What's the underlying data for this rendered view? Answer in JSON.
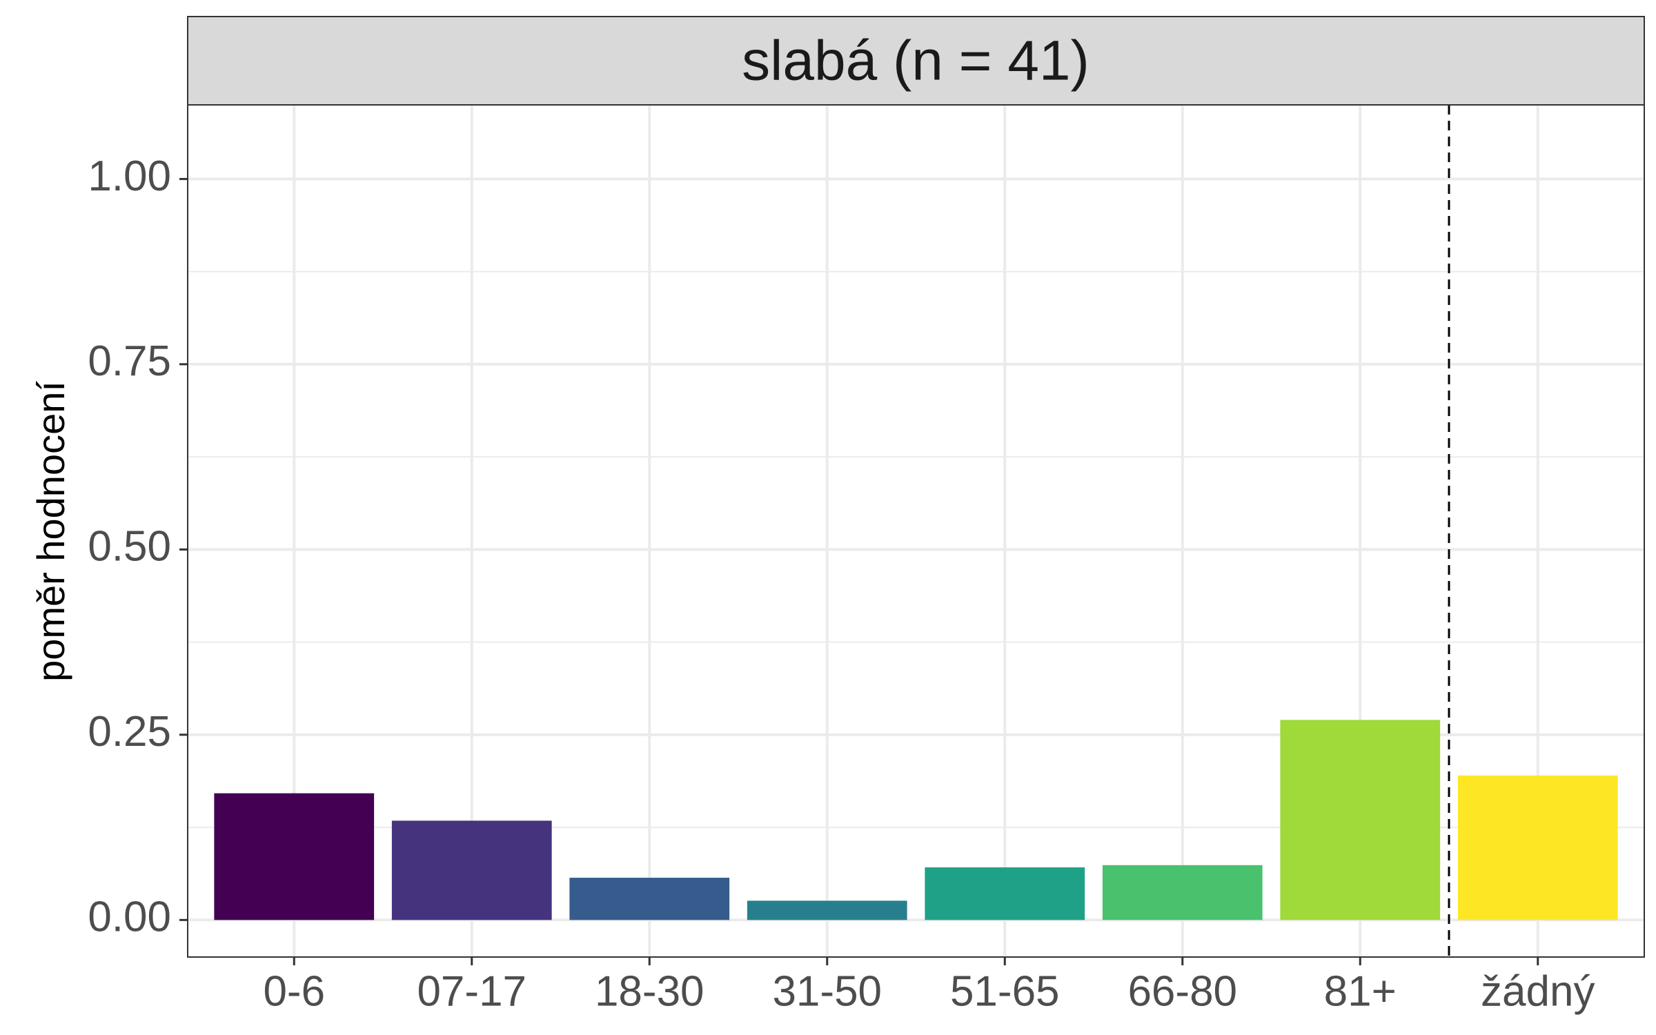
{
  "chart_data": {
    "type": "bar",
    "title": "slabá (n = 41)",
    "xlabel": "",
    "ylabel": "poměr hodnocení",
    "categories": [
      "0-6",
      "07-17",
      "18-30",
      "31-50",
      "51-65",
      "66-80",
      "81+",
      "žádný"
    ],
    "values": [
      0.171,
      0.134,
      0.057,
      0.026,
      0.071,
      0.074,
      0.27,
      0.195
    ],
    "colors": [
      "#440154",
      "#46337E",
      "#365C8D",
      "#277F8E",
      "#1FA187",
      "#4AC16D",
      "#9FDA3A",
      "#FDE725"
    ],
    "ylim": [
      -0.05,
      1.1
    ],
    "yticks": [
      0.0,
      0.25,
      0.5,
      0.75,
      1.0
    ],
    "ytick_labels": [
      "0.00",
      "0.25",
      "0.50",
      "0.75",
      "1.00"
    ],
    "reference_line": {
      "between": [
        "81+",
        "žádný"
      ],
      "style": "dashed"
    },
    "grid": true,
    "legend": "none"
  }
}
